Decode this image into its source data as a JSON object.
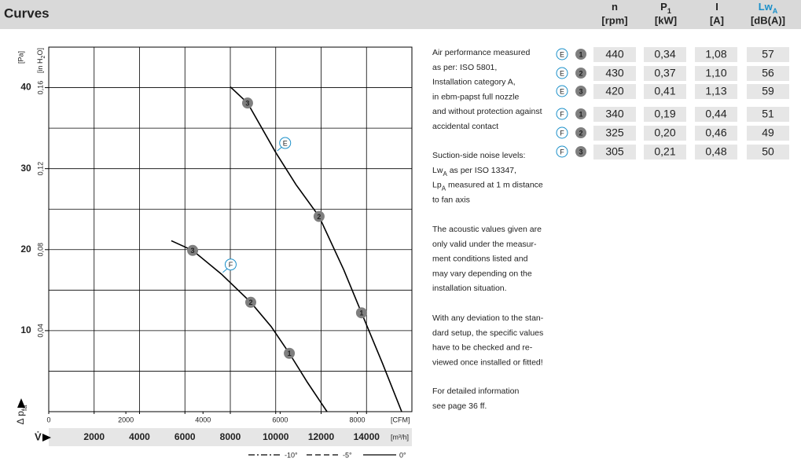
{
  "header": {
    "title": "Curves",
    "columns": [
      {
        "symbol": "n",
        "unit": "[rpm]"
      },
      {
        "symbol": "P",
        "sub": "1",
        "unit": "[kW]"
      },
      {
        "symbol": "I",
        "unit": "[A]"
      },
      {
        "symbol": "Lw",
        "sub": "A",
        "unit": "[dB(A)]"
      }
    ]
  },
  "chart_data": {
    "type": "line",
    "x_label": "V̇",
    "x_unit": "[m³/h]",
    "x2_unit": "[CFM]",
    "y_label": [
      "Δ p",
      "fa"
    ],
    "y_unit": "[Pa]",
    "y2_unit": [
      "[in H",
      "2",
      "O]"
    ],
    "xlim": [
      0,
      16000
    ],
    "xticks": [
      2000,
      4000,
      6000,
      8000,
      10000,
      12000,
      14000
    ],
    "x2lim": [
      0,
      9417
    ],
    "x2ticks": [
      0,
      2000,
      4000,
      6000,
      8000
    ],
    "ylim": [
      0,
      45
    ],
    "yticks": [
      10,
      20,
      30,
      40
    ],
    "y2lim": [
      0,
      0.18
    ],
    "y2ticks": [
      {
        "value": 0.04,
        "label": "0,04"
      },
      {
        "value": 0.08,
        "label": "0,08"
      },
      {
        "value": 0.12,
        "label": "0,12"
      },
      {
        "value": 0.16,
        "label": "0,16"
      }
    ],
    "grid": true,
    "series": [
      {
        "name": "E",
        "color": "#000000",
        "x": [
          8000,
          8760,
          10000,
          10900,
          11910,
          13000,
          13780,
          14700,
          15550
        ],
        "values": [
          40.1,
          38.1,
          32,
          28,
          24.1,
          17.5,
          12.2,
          6,
          0
        ],
        "points": [
          {
            "label": "3",
            "x": 8760,
            "y": 38.1
          },
          {
            "label": "2",
            "x": 11910,
            "y": 24.1
          },
          {
            "label": "1",
            "x": 13780,
            "y": 12.2
          }
        ]
      },
      {
        "name": "F",
        "color": "#000000",
        "x": [
          5400,
          6340,
          7600,
          8900,
          9800,
          10600,
          11400,
          12260
        ],
        "values": [
          21.1,
          19.9,
          17,
          13.5,
          10.5,
          7.2,
          3.6,
          0
        ],
        "points": [
          {
            "label": "3",
            "x": 6340,
            "y": 19.9
          },
          {
            "label": "2",
            "x": 8900,
            "y": 13.5
          },
          {
            "label": "1",
            "x": 10600,
            "y": 7.2
          }
        ]
      }
    ],
    "line_styles": [
      {
        "label": "-10°",
        "dash": "8 3 2 3"
      },
      {
        "label": "-5°",
        "dash": "7 4"
      },
      {
        "label": "0°",
        "dash": "none"
      }
    ]
  },
  "notes": [
    [
      [
        "Air performance measured"
      ],
      [
        "as per: ISO 5801,"
      ],
      [
        "Installation category A,"
      ],
      [
        "in ebm-papst full nozzle"
      ],
      [
        "and without protection against"
      ],
      [
        "accidental contact"
      ]
    ],
    [
      [
        "Suction-side noise levels:"
      ],
      [
        "Lw",
        "A",
        " as per ISO 13347,"
      ],
      [
        "Lp",
        "A",
        " measured at 1 m distance"
      ],
      [
        "to fan axis"
      ]
    ],
    [
      [
        "The acoustic values given are"
      ],
      [
        "only valid under the measur-"
      ],
      [
        "ment conditions listed and"
      ],
      [
        "may vary depending on the"
      ],
      [
        "installation situation."
      ]
    ],
    [
      [
        "With any deviation to the stan-"
      ],
      [
        "dard setup, the specific values"
      ],
      [
        "have to be checked and re-"
      ],
      [
        "viewed once installed or fitted!"
      ]
    ],
    [
      [
        "For detailed information"
      ],
      [
        "see page 36 ff."
      ]
    ]
  ],
  "table": {
    "rows": [
      [
        "E",
        "1",
        440,
        "0,34",
        "1,08",
        57
      ],
      [
        "E",
        "2",
        430,
        "0,37",
        "1,10",
        56
      ],
      [
        "E",
        "3",
        420,
        "0,41",
        "1,13",
        59
      ],
      [
        "F",
        "1",
        340,
        "0,19",
        "0,44",
        51
      ],
      [
        "F",
        "2",
        325,
        "0,20",
        "0,46",
        49
      ],
      [
        "F",
        "3",
        305,
        "0,21",
        "0,48",
        50
      ]
    ]
  }
}
